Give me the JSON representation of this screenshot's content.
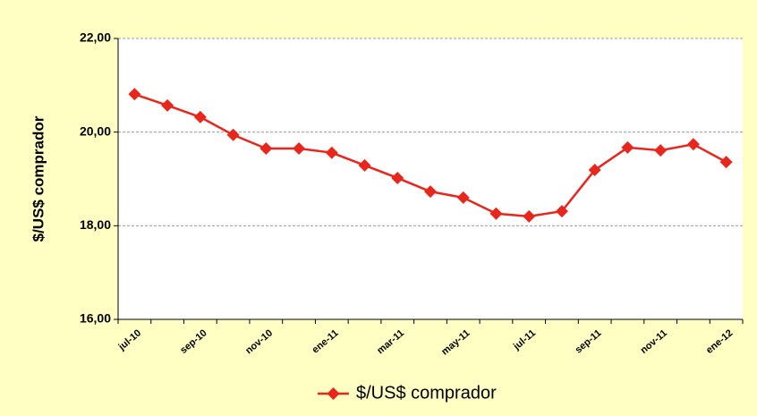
{
  "chart_data": {
    "type": "line",
    "y_label": "$/US$ comprador",
    "categories": [
      "jul-10",
      null,
      "sep-10",
      null,
      "nov-10",
      null,
      "ene-11",
      null,
      "mar-11",
      null,
      "may-11",
      null,
      "jul-11",
      null,
      "sep-11",
      null,
      "nov-11",
      null,
      "ene-12"
    ],
    "series": [
      {
        "name": "$/US$ comprador",
        "color": "#e8261c",
        "values": [
          20.81,
          20.57,
          20.32,
          19.94,
          19.65,
          19.65,
          19.56,
          19.29,
          19.02,
          18.73,
          18.6,
          18.26,
          18.2,
          18.31,
          19.19,
          19.67,
          19.61,
          19.74,
          19.36
        ]
      }
    ],
    "ylim": [
      16,
      22
    ],
    "yticks": [
      {
        "value": 16,
        "label": "16,00"
      },
      {
        "value": 18,
        "label": "18,00"
      },
      {
        "value": 20,
        "label": "20,00"
      },
      {
        "value": 22,
        "label": "22,00"
      }
    ],
    "grid": true,
    "legend": "bottom"
  }
}
